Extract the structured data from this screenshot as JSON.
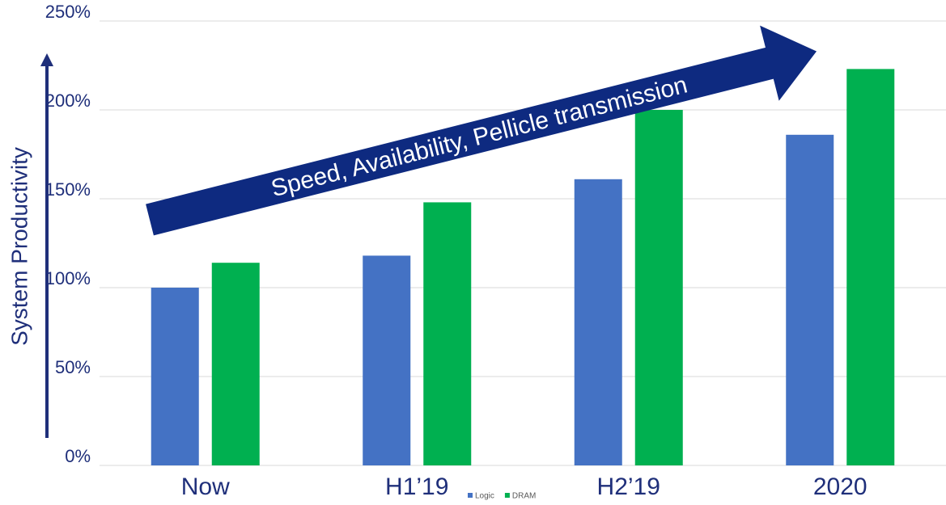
{
  "chart_data": {
    "type": "bar",
    "y_label": "System Productivity",
    "annotation": "Speed, Availability, Pellicle transmission",
    "categories": [
      "Now",
      "H1’19",
      "H2’19",
      "2020"
    ],
    "series": [
      {
        "name": "Logic",
        "color": "#4472c4",
        "values": [
          100,
          118,
          161,
          186
        ]
      },
      {
        "name": "DRAM",
        "color": "#00b050",
        "values": [
          114,
          148,
          200,
          223
        ]
      }
    ],
    "ylim": [
      0,
      250
    ],
    "yticks": [
      {
        "value": 0,
        "label": "0%"
      },
      {
        "value": 50,
        "label": "50%"
      },
      {
        "value": 100,
        "label": "100%"
      },
      {
        "value": 150,
        "label": "150%"
      },
      {
        "value": 200,
        "label": "200%"
      },
      {
        "value": 250,
        "label": "250%"
      }
    ],
    "grid": true
  }
}
